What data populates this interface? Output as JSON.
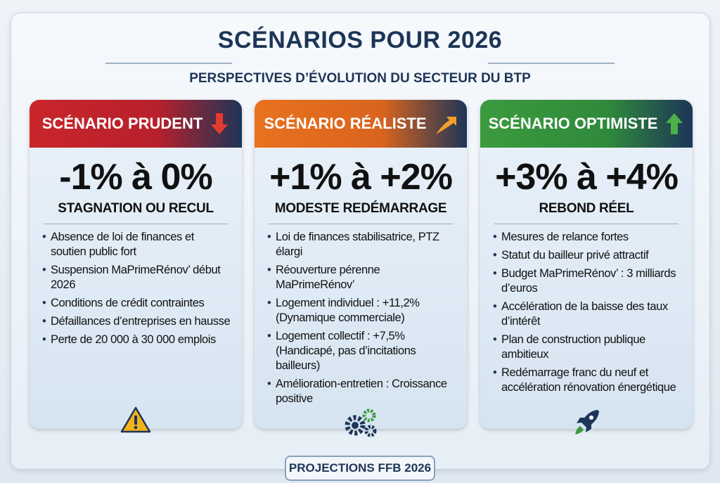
{
  "title": "SCÉNARIOS POUR 2026",
  "subtitle": "PERSPECTIVES D’ÉVOLUTION DU SECTEUR DU BTP",
  "scenarios": [
    {
      "label": "SCÉNARIO PRUDENT",
      "icon": "arrow-down-icon",
      "range": "-1% à 0%",
      "summary": "STAGNATION OU RECUL",
      "bottom_icon": "warning-icon",
      "bullets": [
        "Absence de loi de finances et soutien public fort",
        "Suspension MaPrimeRénov’ début 2026",
        "Conditions de crédit contraintes",
        "Défaillances d’entreprises en hausse",
        "Perte de 20 000 à 30 000 emplois"
      ]
    },
    {
      "label": "SCÉNARIO RÉALISTE",
      "icon": "arrow-up-right-icon",
      "range": "+1% à +2%",
      "summary": "MODESTE REDÉMARRAGE",
      "bottom_icon": "gears-icon",
      "bullets": [
        "Loi de finances stabilisatrice, PTZ élargi",
        "Réouverture pérenne MaPrimeRénov’",
        "Logement individuel : +11,2% (Dynamique commerciale)",
        "Logement collectif : +7,5% (Handicapé, pas d’incitations bailleurs)",
        "Amélioration-entretien : Croissance positive"
      ]
    },
    {
      "label": "SCÉNARIO OPTIMISTE",
      "icon": "arrow-up-icon",
      "range": "+3% à +4%",
      "summary": "REBOND RÉEL",
      "bottom_icon": "rocket-icon",
      "bullets": [
        "Mesures de relance fortes",
        "Statut du bailleur privé attractif",
        "Budget MaPrimeRénov’ : 3 milliards d’euros",
        "Accélération de la baisse des taux d’intérêt",
        "Plan de construction publique ambitieux",
        "Redémarrage franc du neuf et accélération rénovation énergétique"
      ]
    }
  ],
  "footer": "PROJECTIONS FFB 2026",
  "colors": {
    "prudent": "#c9262b",
    "realiste": "#e8721f",
    "optimiste": "#3c9a3e",
    "navy": "#1d3557"
  }
}
